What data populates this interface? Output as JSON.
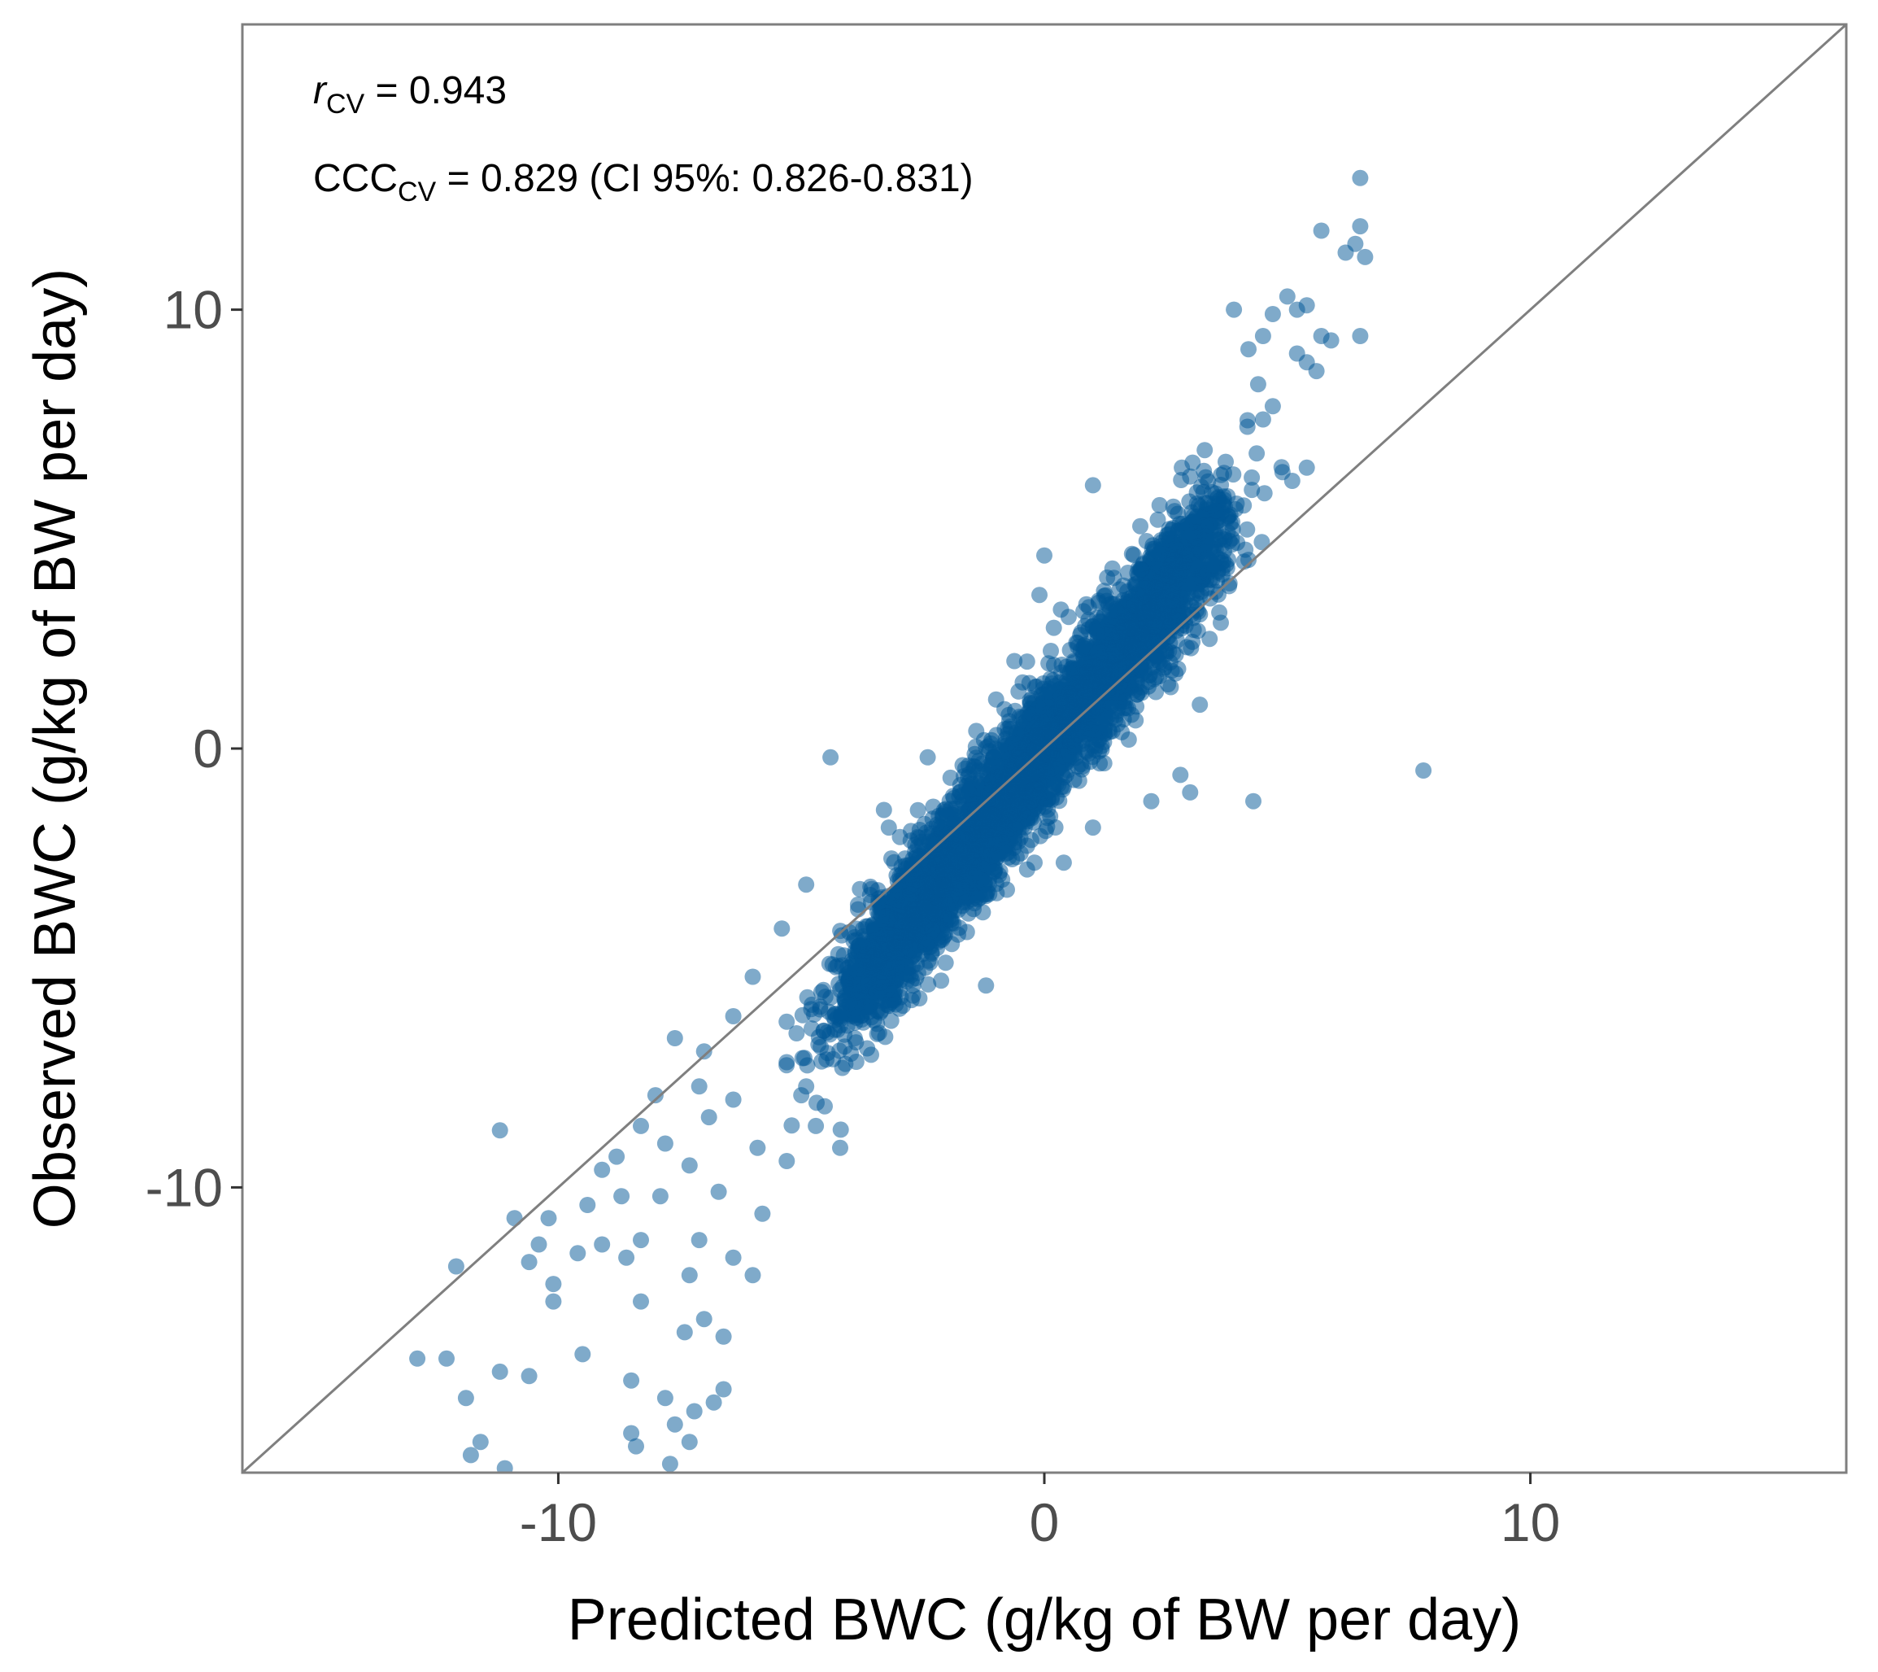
{
  "chart_data": {
    "type": "scatter",
    "xlabel": "Predicted BWC (g/kg of BW per day)",
    "ylabel": "Observed BWC (g/kg of BW per day)",
    "xlim": [
      -16.5,
      16.5
    ],
    "ylim": [
      -16.5,
      16.5
    ],
    "xticks": [
      -10,
      0,
      10
    ],
    "yticks": [
      -10,
      0,
      10
    ],
    "x_tick_labels": [
      "-10",
      "0",
      "10"
    ],
    "y_tick_labels": [
      "-10",
      "0",
      "10"
    ],
    "grid": false,
    "reference_line": {
      "slope": 1,
      "intercept": 0,
      "color": "#7f7f7f"
    },
    "point_color": "#005596",
    "point_opacity": 0.5,
    "annotations": {
      "r": {
        "symbol": "r",
        "subscript": "CV",
        "text": " = 0.943"
      },
      "ccc": {
        "symbol": "CCC",
        "subscript": "CV",
        "text": " = 0.829 (CI 95%: 0.826-0.831)"
      }
    },
    "series": [
      {
        "points": [
          [
            -12.9,
            -13.9
          ],
          [
            -12.3,
            -13.9
          ],
          [
            -11.9,
            -14.8
          ],
          [
            -11.2,
            -14.2
          ],
          [
            -10.6,
            -14.3
          ],
          [
            -11.6,
            -15.8
          ],
          [
            -11.8,
            -16.1
          ],
          [
            -11.1,
            -16.4
          ],
          [
            -12.1,
            -11.8
          ],
          [
            -11.2,
            -8.7
          ],
          [
            -10.9,
            -10.7
          ],
          [
            -10.2,
            -10.7
          ],
          [
            -10.4,
            -11.3
          ],
          [
            -10.6,
            -11.7
          ],
          [
            -10.1,
            -12.2
          ],
          [
            -10.1,
            -12.6
          ],
          [
            -9.6,
            -11.5
          ],
          [
            -9.4,
            -10.4
          ],
          [
            -9.1,
            -11.3
          ],
          [
            -9.5,
            -13.8
          ],
          [
            -8.6,
            -11.6
          ],
          [
            -8.3,
            -11.2
          ],
          [
            -8.3,
            -12.6
          ],
          [
            -8.5,
            -14.4
          ],
          [
            -7.8,
            -14.8
          ],
          [
            -8.5,
            -15.6
          ],
          [
            -8.4,
            -15.9
          ],
          [
            -7.7,
            -16.3
          ],
          [
            -7.3,
            -15.8
          ],
          [
            -7.6,
            -15.4
          ],
          [
            -7.2,
            -15.1
          ],
          [
            -6.8,
            -14.9
          ],
          [
            -6.6,
            -14.6
          ],
          [
            -7.0,
            -13.0
          ],
          [
            -6.6,
            -13.4
          ],
          [
            -7.4,
            -13.3
          ],
          [
            -7.3,
            -12.0
          ],
          [
            -7.1,
            -11.2
          ],
          [
            -6.4,
            -11.6
          ],
          [
            -6.0,
            -12.0
          ],
          [
            -5.8,
            -10.6
          ],
          [
            -6.7,
            -10.1
          ],
          [
            -7.3,
            -9.5
          ],
          [
            -7.8,
            -9.0
          ],
          [
            -7.9,
            -10.2
          ],
          [
            -8.7,
            -10.2
          ],
          [
            -8.8,
            -9.3
          ],
          [
            -9.1,
            -9.6
          ],
          [
            -8.3,
            -8.6
          ],
          [
            -8.0,
            -7.9
          ],
          [
            -7.6,
            -6.6
          ],
          [
            -7.0,
            -6.9
          ],
          [
            -6.4,
            -6.1
          ],
          [
            -6.0,
            -5.2
          ],
          [
            -5.4,
            -4.1
          ],
          [
            -4.9,
            -3.1
          ],
          [
            -4.4,
            -0.2
          ],
          [
            -2.3,
            -1.6
          ],
          [
            -3.2,
            -1.8
          ],
          [
            -3.9,
            -4.3
          ],
          [
            -4.2,
            -5.5
          ],
          [
            -4.6,
            -6.8
          ],
          [
            -5.0,
            -7.9
          ],
          [
            -4.7,
            -8.6
          ],
          [
            -4.2,
            -9.1
          ],
          [
            -5.3,
            -9.4
          ],
          [
            -5.9,
            -9.1
          ],
          [
            -6.4,
            -8.0
          ],
          [
            -6.9,
            -8.4
          ],
          [
            -7.1,
            -7.7
          ],
          [
            -2.7,
            -5.4
          ],
          [
            -1.4,
            -3.4
          ],
          [
            -0.2,
            -2.6
          ],
          [
            0.4,
            -2.6
          ],
          [
            1.0,
            -1.8
          ],
          [
            2.2,
            -1.2
          ],
          [
            3.0,
            -1.0
          ],
          [
            4.3,
            -1.2
          ],
          [
            7.8,
            -0.5
          ],
          [
            2.8,
            -0.6
          ],
          [
            2.6,
            1.4
          ],
          [
            3.2,
            1.0
          ],
          [
            3.4,
            2.5
          ],
          [
            3.6,
            3.1
          ],
          [
            3.8,
            3.7
          ],
          [
            4.2,
            4.3
          ],
          [
            4.9,
            6.3
          ],
          [
            5.1,
            6.1
          ],
          [
            5.4,
            6.4
          ],
          [
            4.5,
            7.5
          ],
          [
            4.7,
            7.8
          ],
          [
            4.4,
            8.3
          ],
          [
            4.5,
            9.4
          ],
          [
            4.7,
            9.9
          ],
          [
            5.0,
            10.3
          ],
          [
            5.2,
            10.0
          ],
          [
            5.4,
            10.1
          ],
          [
            5.4,
            8.8
          ],
          [
            5.6,
            8.6
          ],
          [
            5.2,
            9.0
          ],
          [
            5.9,
            9.3
          ],
          [
            5.7,
            9.4
          ],
          [
            6.2,
            11.3
          ],
          [
            6.4,
            11.5
          ],
          [
            6.5,
            11.9
          ],
          [
            6.6,
            11.2
          ],
          [
            6.5,
            9.4
          ],
          [
            5.7,
            11.8
          ],
          [
            6.5,
            13.0
          ],
          [
            3.9,
            10.0
          ],
          [
            4.2,
            9.1
          ],
          [
            3.3,
            6.8
          ],
          [
            3.0,
            6.2
          ],
          [
            1.0,
            6.0
          ],
          [
            0.0,
            4.4
          ],
          [
            -0.1,
            3.5
          ],
          [
            0.5,
            3.0
          ],
          [
            1.4,
            4.1
          ],
          [
            0.2,
            1.9
          ],
          [
            -0.7,
            0.5
          ],
          [
            -1.4,
            0.4
          ],
          [
            -2.4,
            -0.2
          ],
          [
            -3.3,
            -1.4
          ],
          [
            -1.3,
            -3.0
          ],
          [
            -1.6,
            -3.5
          ],
          [
            -1.2,
            -5.4
          ],
          [
            -2.9,
            -5.1
          ],
          [
            -3.6,
            -6.0
          ],
          [
            -3.9,
            -6.6
          ],
          [
            -4.9,
            -7.7
          ]
        ]
      }
    ]
  }
}
